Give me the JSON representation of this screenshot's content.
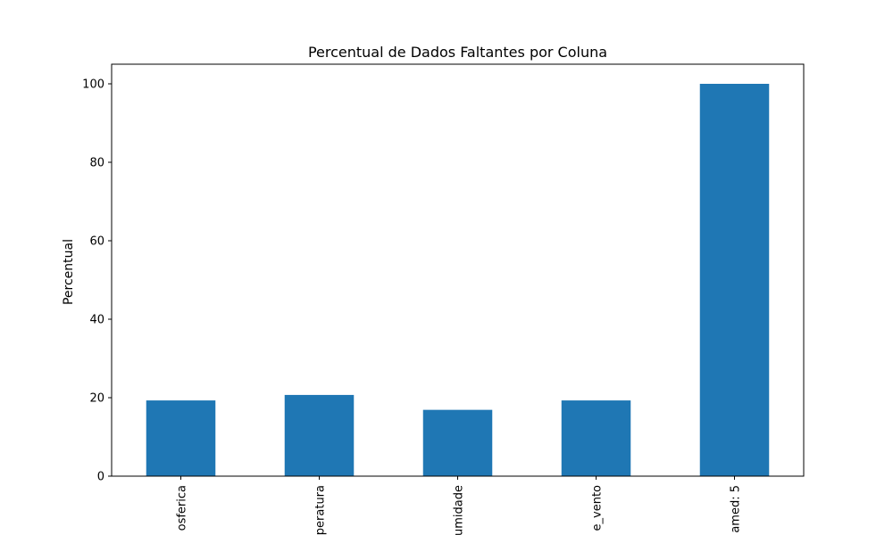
{
  "chart_data": {
    "type": "bar",
    "title": "Percentual de Dados Faltantes por Coluna",
    "xlabel": "",
    "ylabel": "Percentual",
    "categories": [
      "osferica",
      "peratura",
      "umidade",
      "e_vento",
      "amed: 5"
    ],
    "values": [
      19.3,
      20.7,
      16.9,
      19.3,
      100
    ],
    "ylim": [
      0,
      105
    ],
    "yticks": [
      0,
      20,
      40,
      60,
      80,
      100
    ],
    "grid": false,
    "colors": {
      "bar": "#1f77b4"
    }
  }
}
